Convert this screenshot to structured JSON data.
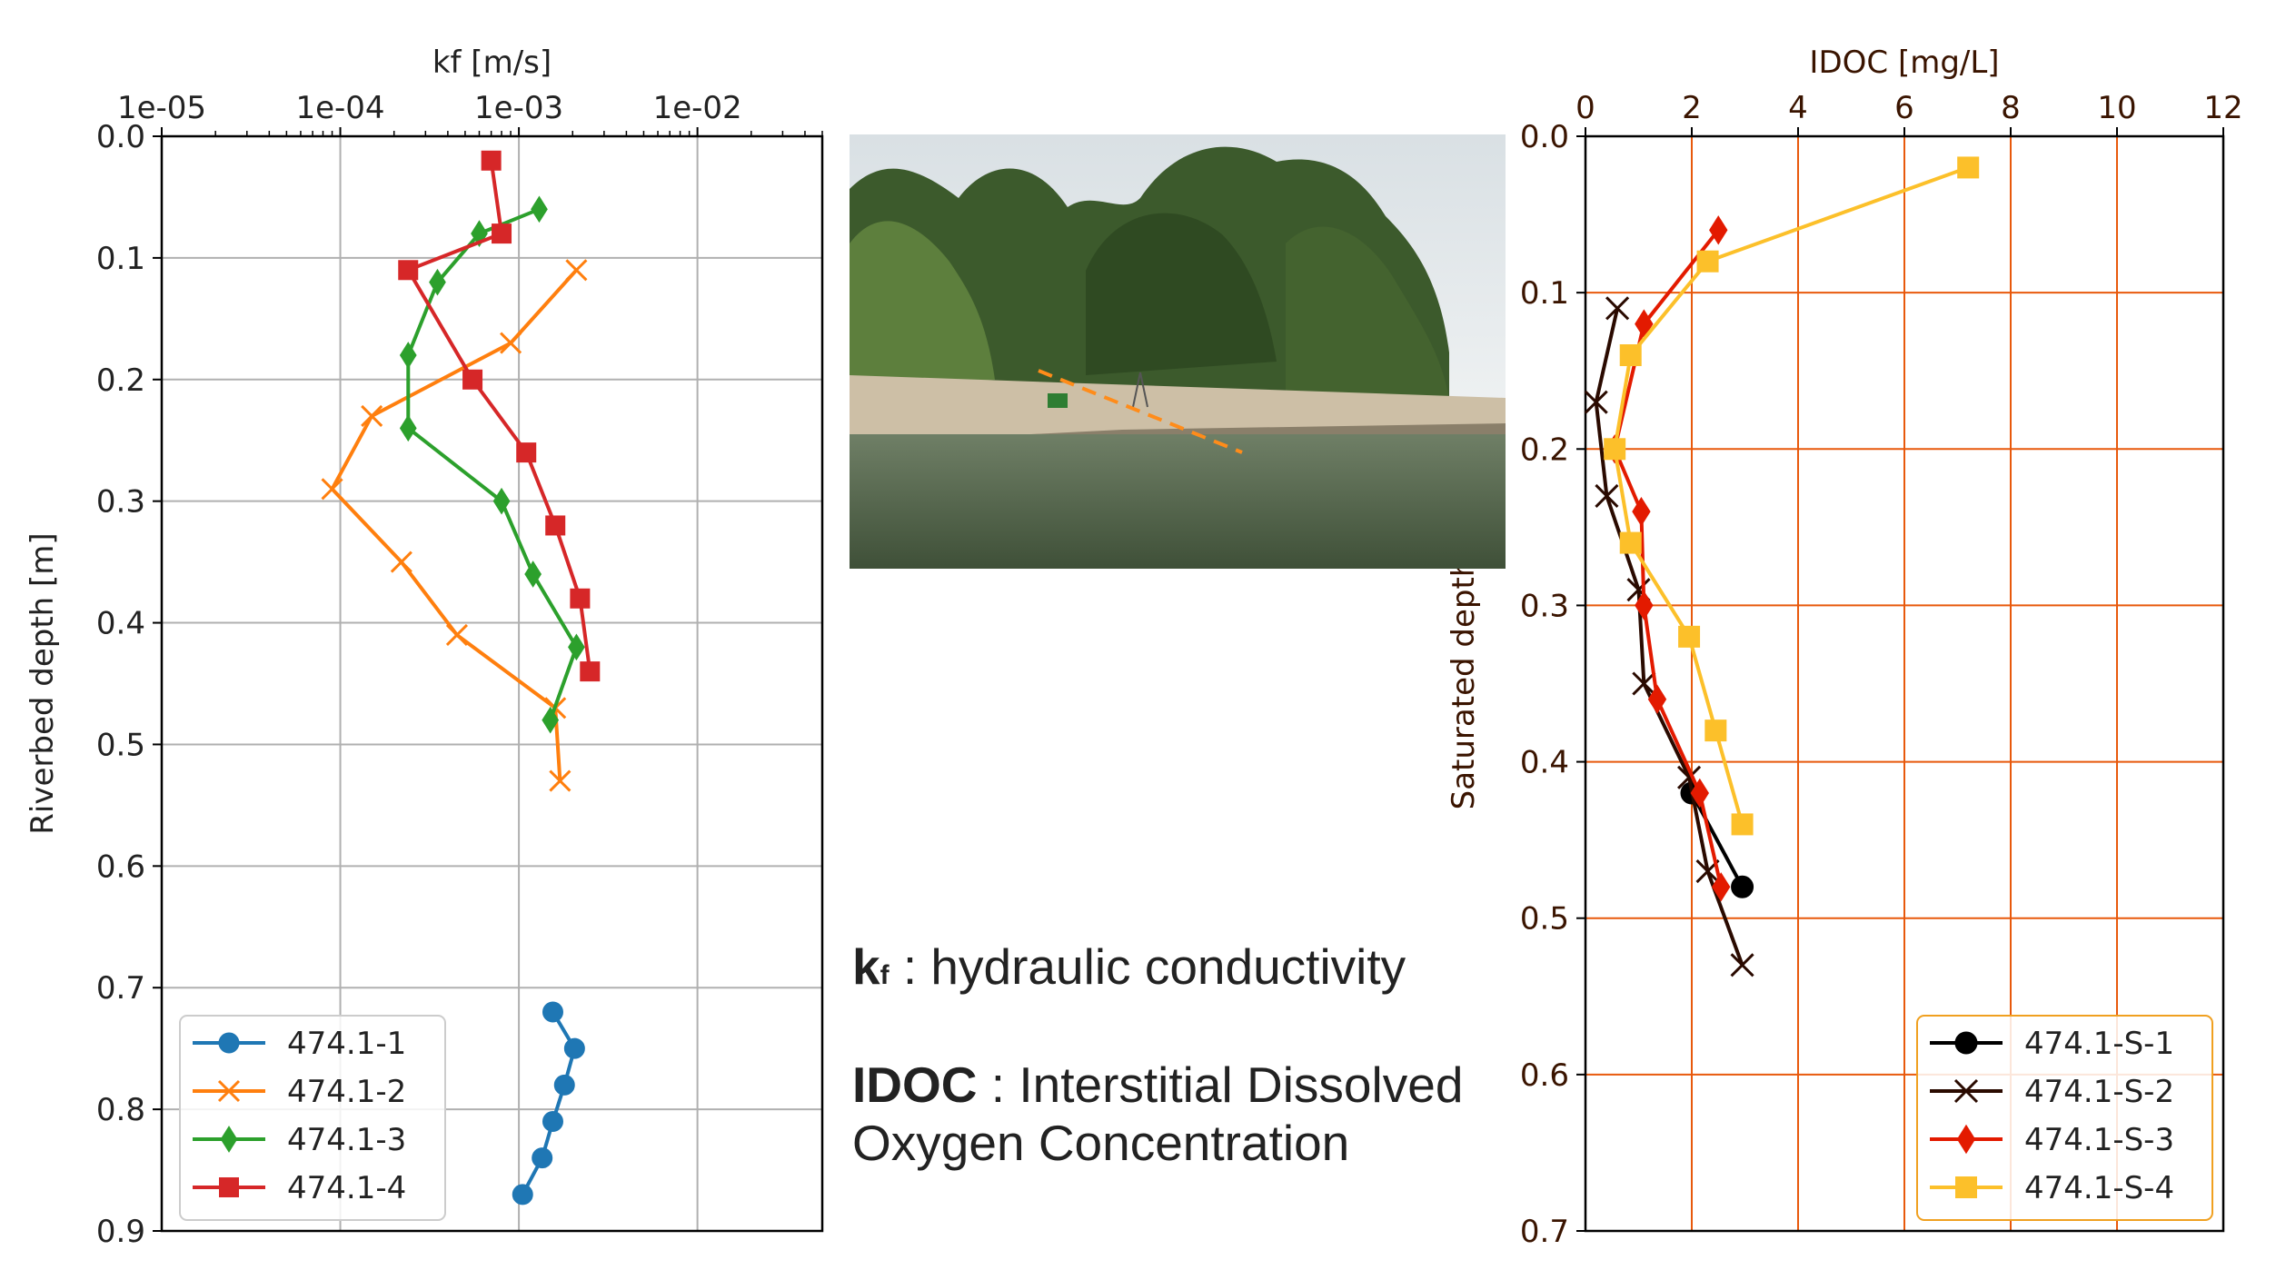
{
  "chart_data": [
    {
      "type": "line",
      "xlabel": "kf [m/s]",
      "ylabel": "Riverbed depth [m]",
      "xscale": "log",
      "xlim": [
        1e-05,
        0.05
      ],
      "ylim": [
        0.9,
        0.0
      ],
      "y_inverted": true,
      "x_axis_position": "top",
      "grid": true,
      "x_tick_values": [
        1e-05,
        0.0001,
        0.001,
        0.01
      ],
      "x_tick_labels": [
        "1e-05",
        "1e-04",
        "1e-03",
        "1e-02"
      ],
      "y_tick_values": [
        0,
        0.1,
        0.2,
        0.3,
        0.4,
        0.5,
        0.6,
        0.7,
        0.8,
        0.9
      ],
      "y_tick_labels": [
        "0.0",
        "0.1",
        "0.2",
        "0.3",
        "0.4",
        "0.5",
        "0.6",
        "0.7",
        "0.8",
        "0.9"
      ],
      "legend_placement": "lower-left",
      "series": [
        {
          "name": "474.1-1",
          "color": "#1f77b4",
          "marker": "circle",
          "points": [
            [
              0.00155,
              0.72
            ],
            [
              0.00205,
              0.75
            ],
            [
              0.0018,
              0.78
            ],
            [
              0.00155,
              0.81
            ],
            [
              0.00135,
              0.84
            ],
            [
              0.00105,
              0.87
            ]
          ]
        },
        {
          "name": "474.1-2",
          "color": "#ff7f0e",
          "marker": "x",
          "points": [
            [
              0.0021,
              0.11
            ],
            [
              0.0009,
              0.17
            ],
            [
              0.00015,
              0.23
            ],
            [
              9e-05,
              0.29
            ],
            [
              0.00022,
              0.35
            ],
            [
              0.00045,
              0.41
            ],
            [
              0.0016,
              0.47
            ],
            [
              0.0017,
              0.53
            ]
          ]
        },
        {
          "name": "474.1-3",
          "color": "#2ca02c",
          "marker": "diamond",
          "points": [
            [
              0.0013,
              0.06
            ],
            [
              0.0006,
              0.08
            ],
            [
              0.00035,
              0.12
            ],
            [
              0.00024,
              0.18
            ],
            [
              0.00024,
              0.24
            ],
            [
              0.0008,
              0.3
            ],
            [
              0.0012,
              0.36
            ],
            [
              0.0021,
              0.42
            ],
            [
              0.0015,
              0.48
            ]
          ]
        },
        {
          "name": "474.1-4",
          "color": "#d62728",
          "marker": "square",
          "points": [
            [
              0.0007,
              0.02
            ],
            [
              0.0008,
              0.08
            ],
            [
              0.00024,
              0.11
            ],
            [
              0.00055,
              0.2
            ],
            [
              0.0011,
              0.26
            ],
            [
              0.0016,
              0.32
            ],
            [
              0.0022,
              0.38
            ],
            [
              0.0025,
              0.44
            ]
          ]
        }
      ]
    },
    {
      "type": "line",
      "xlabel": "IDOC [mg/L]",
      "ylabel": "Saturated depth",
      "xlim": [
        0,
        12
      ],
      "ylim": [
        0.7,
        0.0
      ],
      "y_inverted": true,
      "x_axis_position": "top",
      "grid": true,
      "grid_color": "#e8590c",
      "x_tick_values": [
        0,
        2,
        4,
        6,
        8,
        10,
        12
      ],
      "x_tick_labels": [
        "0",
        "2",
        "4",
        "6",
        "8",
        "10",
        "12"
      ],
      "y_tick_values": [
        0,
        0.1,
        0.2,
        0.3,
        0.4,
        0.5,
        0.6,
        0.7
      ],
      "y_tick_labels": [
        "0.0",
        "0.1",
        "0.2",
        "0.3",
        "0.4",
        "0.5",
        "0.6",
        "0.7"
      ],
      "legend_placement": "lower-right",
      "series": [
        {
          "name": "474.1-S-1",
          "color": "#000000",
          "marker": "circle",
          "points": [
            [
              2.0,
              0.42
            ],
            [
              2.95,
              0.48
            ]
          ]
        },
        {
          "name": "474.1-S-2",
          "color": "#2a0a00",
          "marker": "x",
          "points": [
            [
              0.6,
              0.11
            ],
            [
              0.2,
              0.17
            ],
            [
              0.4,
              0.23
            ],
            [
              1.0,
              0.29
            ],
            [
              1.1,
              0.35
            ],
            [
              1.95,
              0.41
            ],
            [
              2.3,
              0.47
            ],
            [
              2.95,
              0.53
            ]
          ]
        },
        {
          "name": "474.1-S-3",
          "color": "#e31a00",
          "marker": "diamond",
          "points": [
            [
              2.5,
              0.06
            ],
            [
              1.1,
              0.12
            ],
            [
              0.55,
              0.2
            ],
            [
              1.05,
              0.24
            ],
            [
              1.1,
              0.3
            ],
            [
              1.35,
              0.36
            ],
            [
              2.15,
              0.42
            ],
            [
              2.55,
              0.48
            ]
          ]
        },
        {
          "name": "474.1-S-4",
          "color": "#fcc02a",
          "marker": "square",
          "points": [
            [
              7.2,
              0.02
            ],
            [
              2.3,
              0.08
            ],
            [
              0.85,
              0.14
            ],
            [
              0.55,
              0.2
            ],
            [
              0.85,
              0.26
            ],
            [
              1.95,
              0.32
            ],
            [
              2.45,
              0.38
            ],
            [
              2.95,
              0.44
            ]
          ]
        }
      ]
    }
  ],
  "captions": {
    "kf_symbol": "k",
    "kf_sub": "f",
    "kf_desc": " : hydraulic conductivity",
    "idoc_symbol": "IDOC",
    "idoc_desc_line1": " : Interstitial Dissolved",
    "idoc_desc_line2": "Oxygen Concentration"
  },
  "photo": {
    "sky": "#e7ecef",
    "trees_dark": "#2f4a22",
    "trees_light": "#5d7f3d",
    "sand": "#cdbfa6",
    "water": "#53654a",
    "dashed_line": "#ff8c1a"
  }
}
